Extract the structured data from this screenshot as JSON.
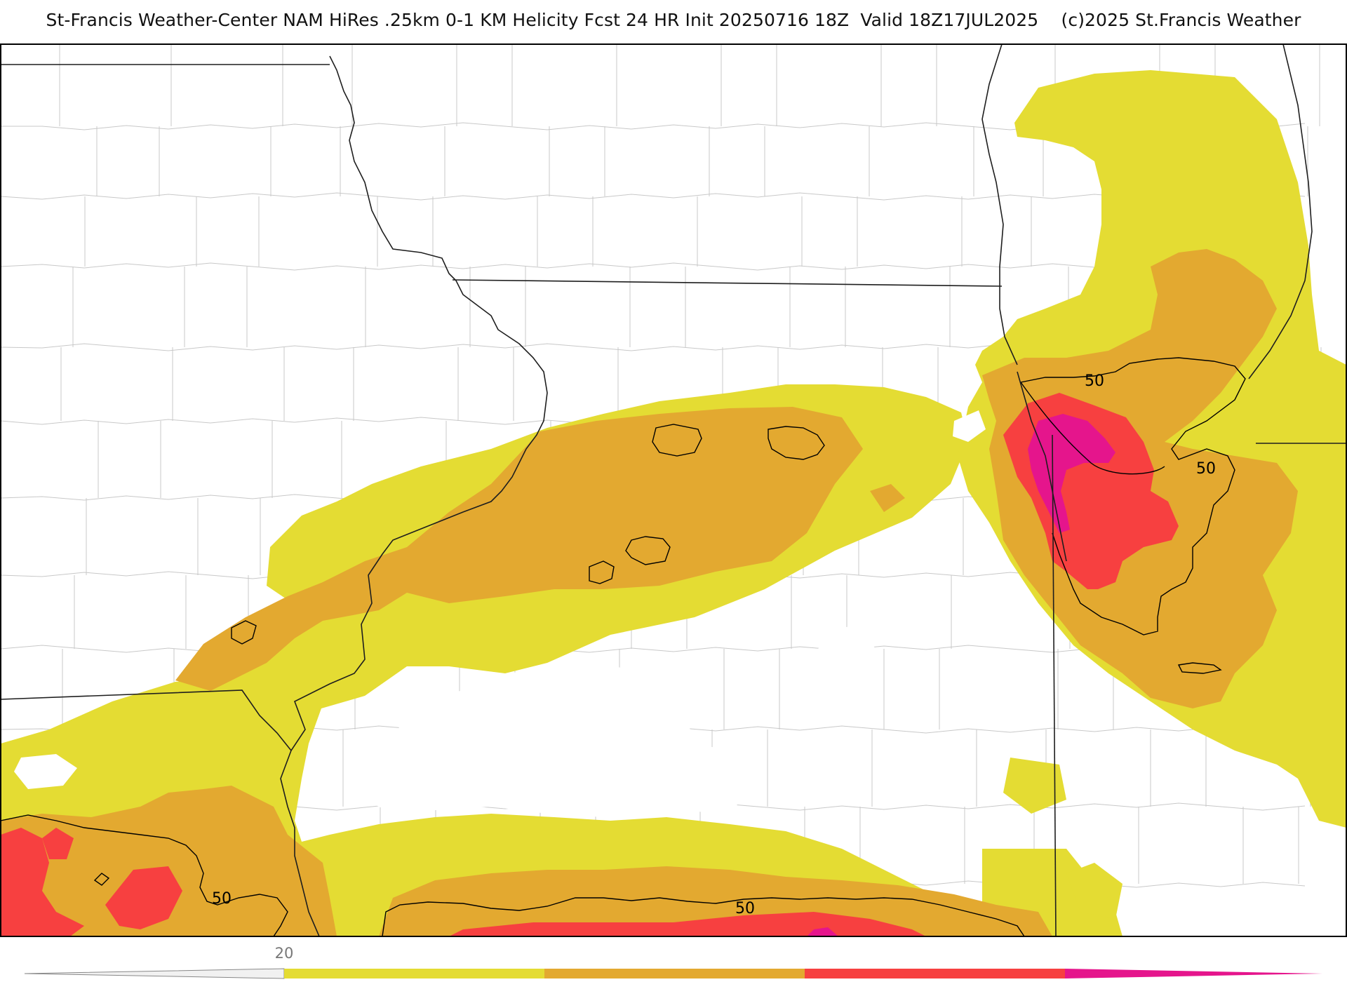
{
  "header": {
    "title": "St-Francis Weather-Center NAM HiRes .25km 0-1 KM Helicity Fcst 24 HR Init 20250716 18Z  Valid 18Z17JUL2025    (c)2025 St.Francis Weather"
  },
  "map": {
    "contour_value_label": "50",
    "contour_labels": [
      "50",
      "50",
      "50",
      "50"
    ]
  },
  "colors": {
    "level_1": "#e4dc33",
    "level_2": "#e3a930",
    "level_3": "#f74040",
    "level_4": "#e5158c",
    "contour": "#000000",
    "county_lines": "#c8c8c8",
    "state_lines": "#222222"
  },
  "colorbar": {
    "tick_label": "20",
    "segments": [
      {
        "color": "#e4dc33"
      },
      {
        "color": "#e3a930"
      },
      {
        "color": "#f74040"
      },
      {
        "color": "#e5158c"
      }
    ]
  }
}
